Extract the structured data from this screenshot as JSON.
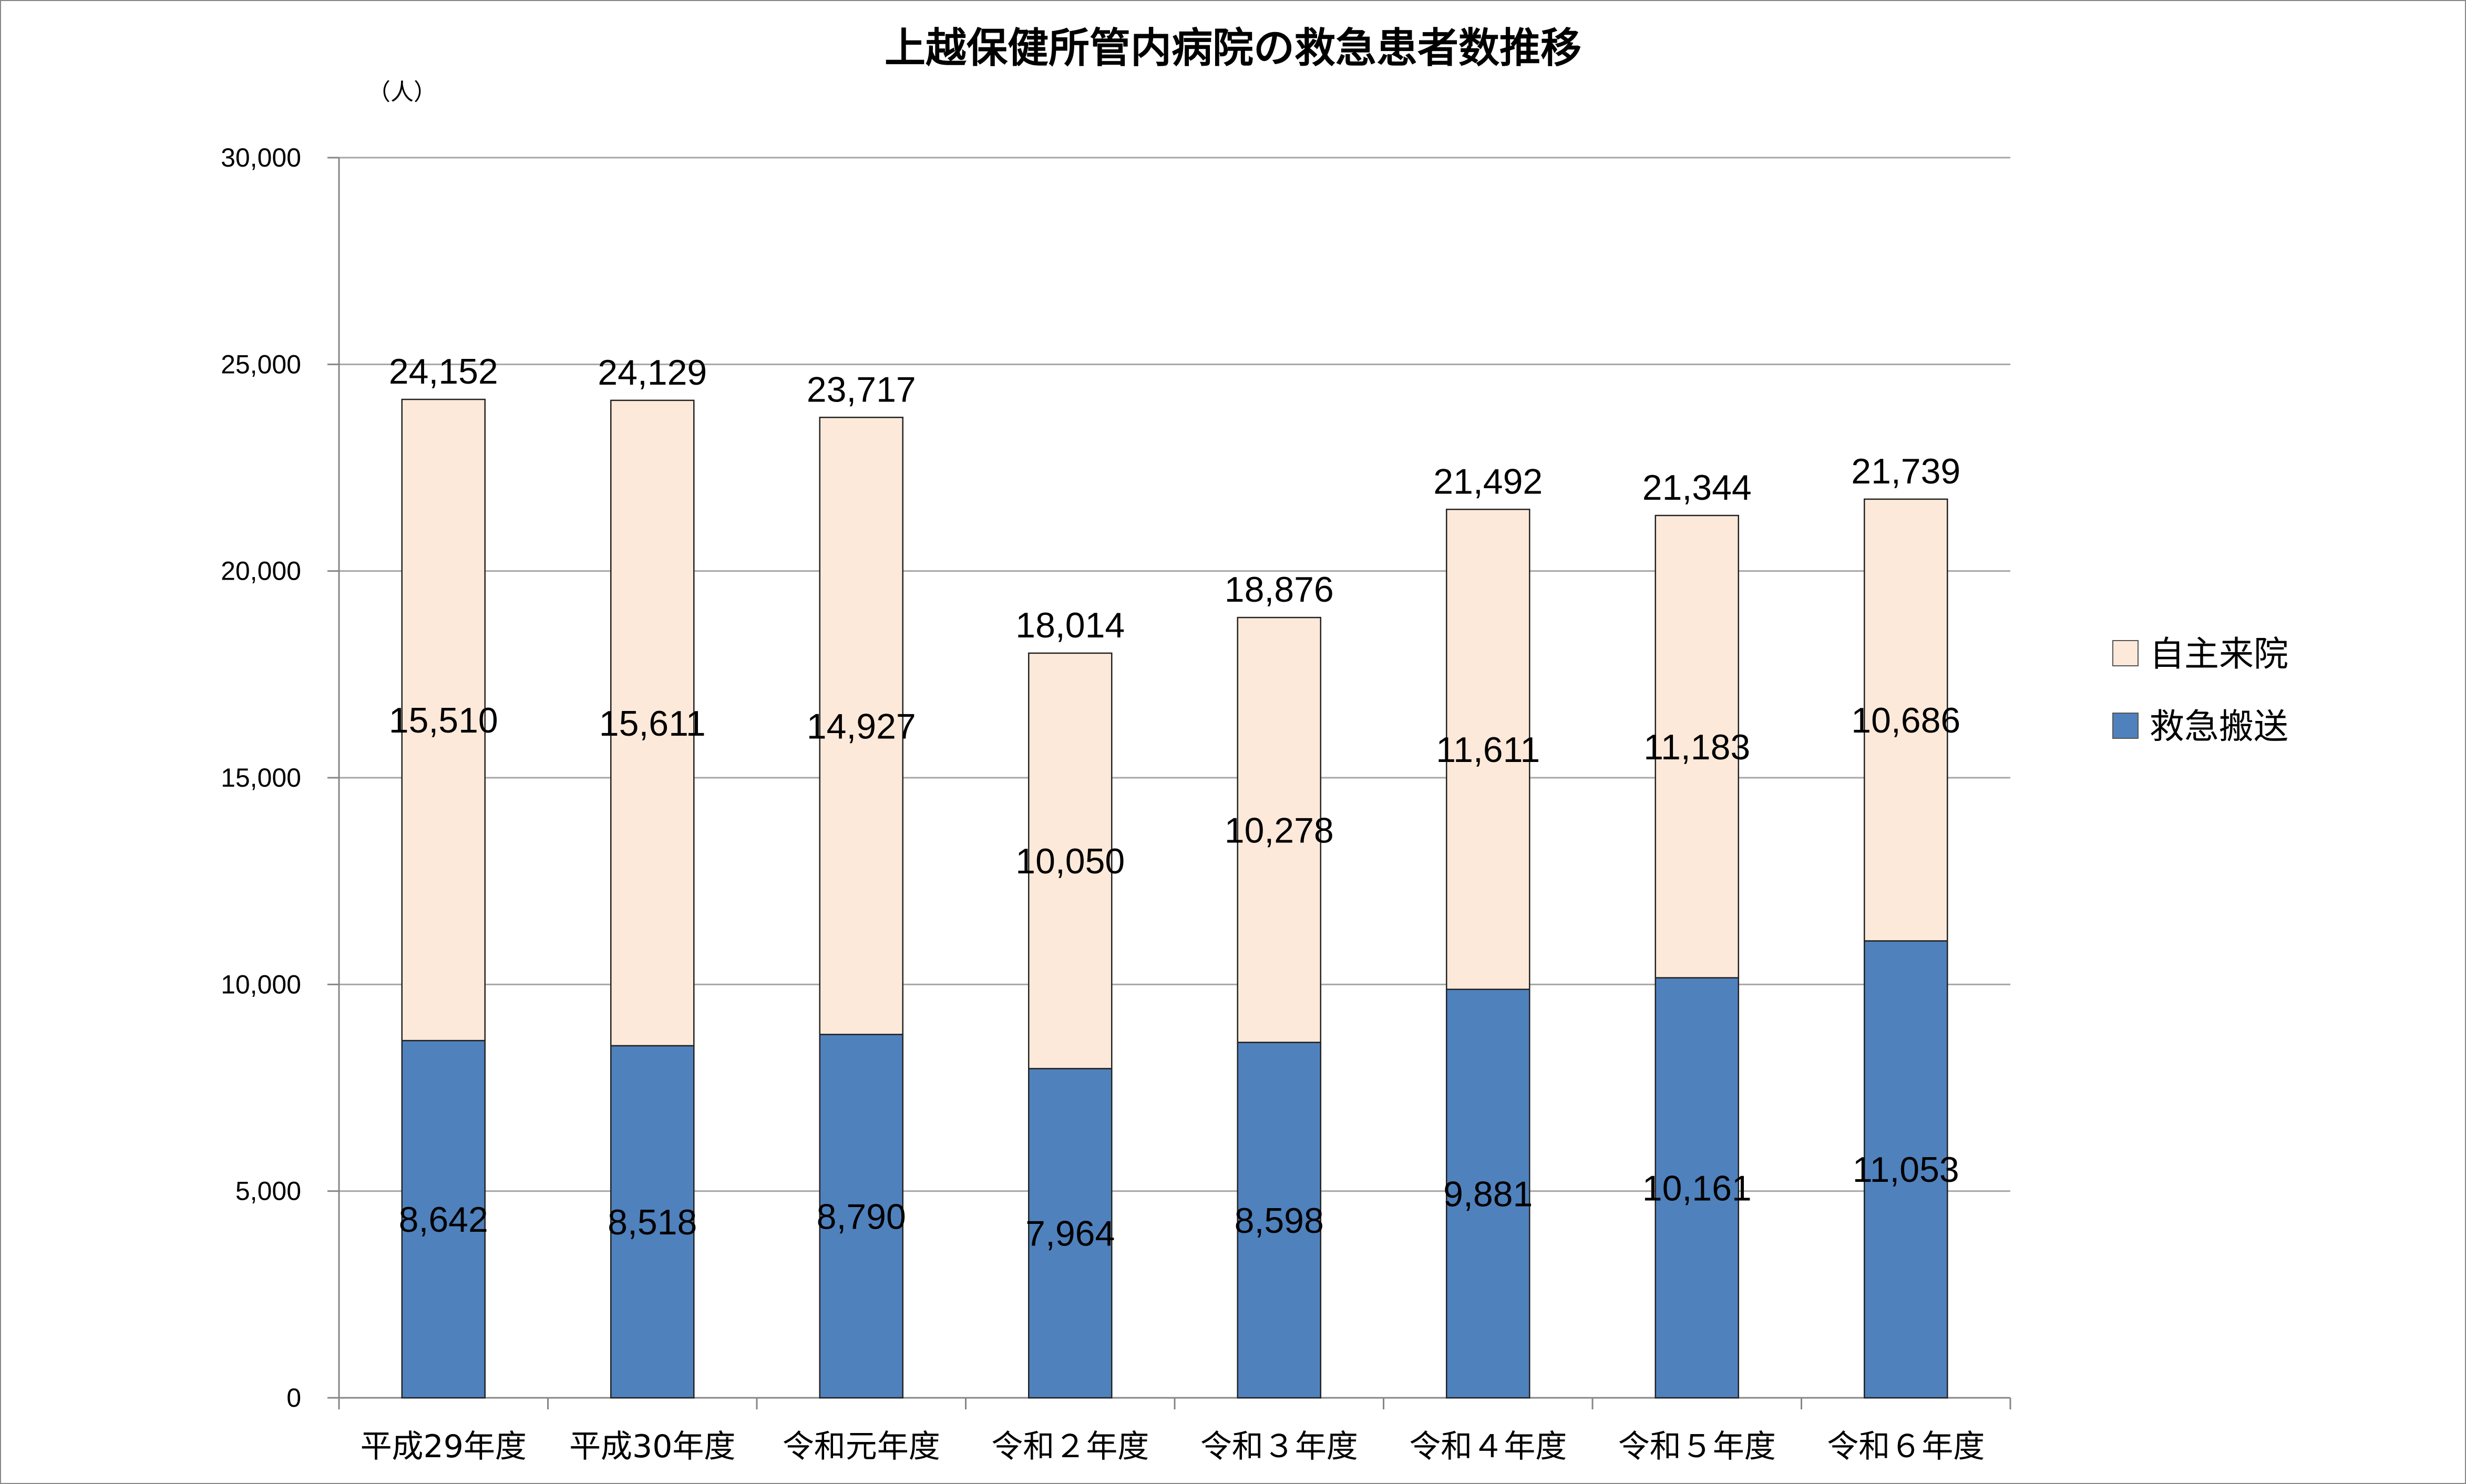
{
  "chart_data": {
    "type": "bar",
    "stacked": true,
    "title": "上越保健所管内病院の救急患者数推移",
    "unit_label": "（人）",
    "categories": [
      "平成29年度",
      "平成30年度",
      "令和元年度",
      "令和２年度",
      "令和３年度",
      "令和４年度",
      "令和５年度",
      "令和６年度"
    ],
    "series": [
      {
        "name": "救急搬送",
        "color": "#4f81bd",
        "values": [
          8642,
          8518,
          8790,
          7964,
          8598,
          9881,
          10161,
          11053
        ]
      },
      {
        "name": "自主来院",
        "color": "#fde9d9",
        "values": [
          15510,
          15611,
          14927,
          10050,
          10278,
          11611,
          11183,
          10686
        ]
      }
    ],
    "totals": [
      24152,
      24129,
      23717,
      18014,
      18876,
      21492,
      21344,
      21739
    ],
    "ylim": [
      0,
      30000
    ],
    "yticks": [
      0,
      5000,
      10000,
      15000,
      20000,
      25000,
      30000
    ],
    "grid": true,
    "legend_position": "right"
  }
}
